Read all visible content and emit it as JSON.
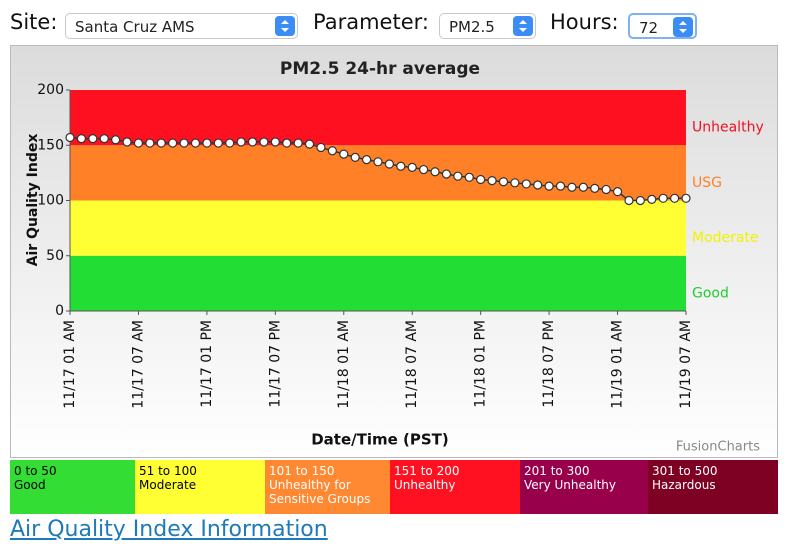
{
  "controls": {
    "site_label": "Site:",
    "site": "Santa Cruz AMS",
    "parameter_label": "Parameter:",
    "parameter": "PM2.5",
    "hours_label": "Hours:",
    "hours": "72"
  },
  "chart_data": {
    "type": "line",
    "title": "PM2.5 24-hr average",
    "x_label": "Date/Time (PST)",
    "y_label": "Air Quality Index",
    "credit": "FusionCharts",
    "categories": [
      "11/17 01 AM",
      null,
      null,
      null,
      null,
      null,
      "11/17 07 AM",
      null,
      null,
      null,
      null,
      null,
      "11/17 01 PM",
      null,
      null,
      null,
      null,
      null,
      "11/17 07 PM",
      null,
      null,
      null,
      null,
      null,
      "11/18 01 AM",
      null,
      null,
      null,
      null,
      null,
      "11/18 07 AM",
      null,
      null,
      null,
      null,
      null,
      "11/18 01 PM",
      null,
      null,
      null,
      null,
      null,
      "11/18 07 PM",
      null,
      null,
      null,
      null,
      null,
      "11/19 01 AM",
      null,
      null,
      null,
      null,
      null,
      "11/19 07 AM"
    ],
    "series": [
      {
        "color": "#333333",
        "marker_color": "#ffffff",
        "values": [
          157,
          156,
          156,
          156,
          155,
          153,
          152,
          152,
          152,
          152,
          152,
          152,
          152,
          152,
          152,
          153,
          153,
          153,
          153,
          152,
          152,
          151,
          148,
          145,
          142,
          139,
          137,
          135,
          133,
          131,
          130,
          128,
          126,
          124,
          122,
          121,
          119,
          118,
          117,
          116,
          115,
          114,
          113,
          113,
          112,
          112,
          111,
          110,
          108,
          100,
          100,
          101,
          102,
          102,
          102
        ]
      }
    ],
    "ylim": [
      0,
      200
    ],
    "yticks": [
      0,
      50,
      100,
      150,
      200
    ],
    "bands": [
      {
        "label": "Good",
        "from": 0,
        "to": 50,
        "color": "#22dd33",
        "label_color": "#22cc33"
      },
      {
        "label": "Moderate",
        "from": 50,
        "to": 100,
        "color": "#ffff33",
        "label_color": "#f2f200"
      },
      {
        "label": "USG",
        "from": 100,
        "to": 150,
        "color": "#ff8027",
        "label_color": "#ff8027"
      },
      {
        "label": "Unhealthy",
        "from": 150,
        "to": 200,
        "color": "#ff1020",
        "label_color": "#ee1122"
      }
    ]
  },
  "legend": [
    {
      "range": "0 to 50",
      "name": "Good",
      "color": "#33dd33",
      "text_color": "#000000"
    },
    {
      "range": "51 to 100",
      "name": "Moderate",
      "color": "#ffff33",
      "text_color": "#000000"
    },
    {
      "range": "101 to 150",
      "name": "Unhealthy for Sensitive Groups",
      "color": "#ff8833",
      "text_color": "#ffffff"
    },
    {
      "range": "151 to 200",
      "name": "Unhealthy",
      "color": "#ff1122",
      "text_color": "#ffffff"
    },
    {
      "range": "201 to 300",
      "name": "Very Unhealthy",
      "color": "#99004c",
      "text_color": "#ffffff"
    },
    {
      "range": "301 to 500",
      "name": "Hazardous",
      "color": "#7e0023",
      "text_color": "#ffffff"
    }
  ],
  "link": "Air Quality Index Information"
}
